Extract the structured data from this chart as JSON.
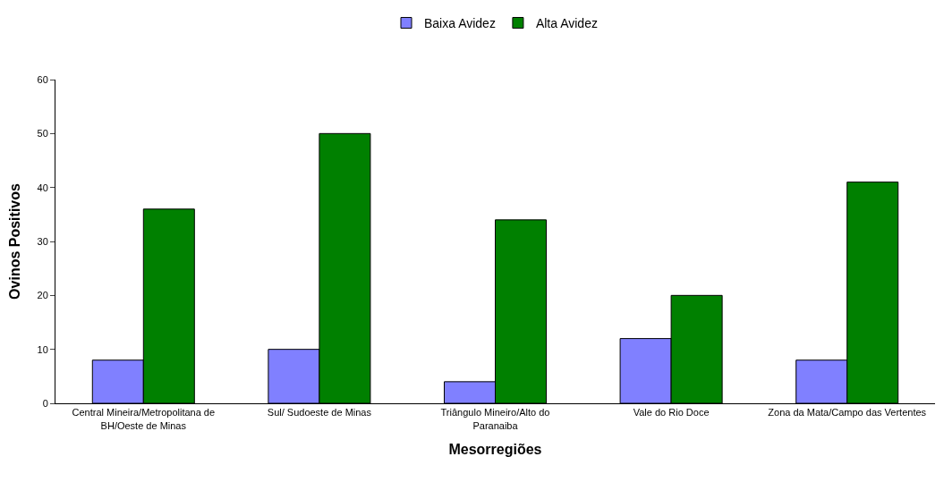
{
  "chart_data": {
    "type": "bar",
    "xlabel": "Mesorregiões",
    "ylabel": "Ovinos Positivos",
    "categories": [
      "Central Mineira/Metropolitana de BH/Oeste de Minas",
      "Sul/ Sudoeste de Minas",
      "Triângulo Mineiro/Alto do Paranaiba",
      "Vale do Rio Doce",
      "Zona da Mata/Campo das Vertentes"
    ],
    "series": [
      {
        "name": "Baixa Avidez",
        "color": "#8080ff",
        "values": [
          8,
          10,
          4,
          12,
          8
        ]
      },
      {
        "name": "Alta Avidez",
        "color": "#008000",
        "values": [
          36,
          50,
          34,
          20,
          41
        ]
      }
    ],
    "ylim": [
      0,
      60
    ],
    "yticks": [
      0,
      10,
      20,
      30,
      40,
      50,
      60
    ],
    "grid": false,
    "legend": "top"
  }
}
